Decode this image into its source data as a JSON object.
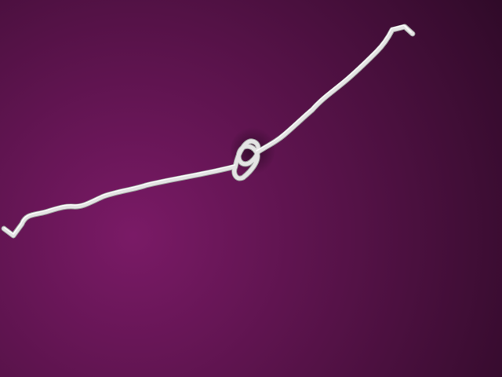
{
  "scene": {
    "subject": "rope-with-overhand-knot",
    "colors": {
      "background_center": "#7a1a66",
      "background_mid": "#551247",
      "background_edge": "#2f0a28",
      "rope": "#e4e4e4",
      "rope_highlight": "#ffffff",
      "rope_shadow": "#9a9a9a",
      "knot_shadow": "#2a0824"
    }
  }
}
